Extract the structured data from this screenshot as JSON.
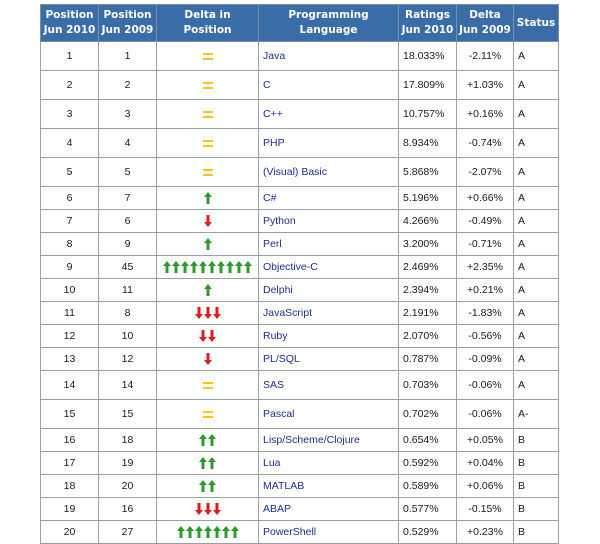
{
  "headers": {
    "pos2010": [
      "Position",
      "Jun 2010"
    ],
    "pos2009": [
      "Position",
      "Jun 2009"
    ],
    "delta_pos": "Delta in Position",
    "language": "Programming Language",
    "ratings": [
      "Ratings",
      "Jun 2010"
    ],
    "delta": [
      "Delta",
      "Jun 2009"
    ],
    "status": "Status"
  },
  "colors": {
    "header_bg": "#3a6ca8",
    "up_arrow": "#2e9a2e",
    "down_arrow": "#dd1c1c",
    "equal": "#f5c517",
    "link": "#1c2f8e"
  },
  "rows": [
    {
      "pos2010": "1",
      "pos2009": "1",
      "change": "equal",
      "count": 1,
      "language": "Java",
      "rating": "18.033%",
      "delta": "-2.11%",
      "status": "A"
    },
    {
      "pos2010": "2",
      "pos2009": "2",
      "change": "equal",
      "count": 1,
      "language": "C",
      "rating": "17.809%",
      "delta": "+1.03%",
      "status": "A"
    },
    {
      "pos2010": "3",
      "pos2009": "3",
      "change": "equal",
      "count": 1,
      "language": "C++",
      "rating": "10.757%",
      "delta": "+0.16%",
      "status": "A"
    },
    {
      "pos2010": "4",
      "pos2009": "4",
      "change": "equal",
      "count": 1,
      "language": "PHP",
      "rating": "8.934%",
      "delta": "-0.74%",
      "status": "A"
    },
    {
      "pos2010": "5",
      "pos2009": "5",
      "change": "equal",
      "count": 1,
      "language": "(Visual) Basic",
      "rating": "5.868%",
      "delta": "-2.07%",
      "status": "A"
    },
    {
      "pos2010": "6",
      "pos2009": "7",
      "change": "up",
      "count": 1,
      "language": "C#",
      "rating": "5.196%",
      "delta": "+0.66%",
      "status": "A"
    },
    {
      "pos2010": "7",
      "pos2009": "6",
      "change": "down",
      "count": 1,
      "language": "Python",
      "rating": "4.266%",
      "delta": "-0.49%",
      "status": "A"
    },
    {
      "pos2010": "8",
      "pos2009": "9",
      "change": "up",
      "count": 1,
      "language": "Perl",
      "rating": "3.200%",
      "delta": "-0.71%",
      "status": "A"
    },
    {
      "pos2010": "9",
      "pos2009": "45",
      "change": "up",
      "count": 10,
      "language": "Objective-C",
      "rating": "2.469%",
      "delta": "+2.35%",
      "status": "A"
    },
    {
      "pos2010": "10",
      "pos2009": "11",
      "change": "up",
      "count": 1,
      "language": "Delphi",
      "rating": "2.394%",
      "delta": "+0.21%",
      "status": "A"
    },
    {
      "pos2010": "11",
      "pos2009": "8",
      "change": "down",
      "count": 3,
      "language": "JavaScript",
      "rating": "2.191%",
      "delta": "-1.83%",
      "status": "A"
    },
    {
      "pos2010": "12",
      "pos2009": "10",
      "change": "down",
      "count": 2,
      "language": "Ruby",
      "rating": "2.070%",
      "delta": "-0.56%",
      "status": "A"
    },
    {
      "pos2010": "13",
      "pos2009": "12",
      "change": "down",
      "count": 1,
      "language": "PL/SQL",
      "rating": "0.787%",
      "delta": "-0.09%",
      "status": "A"
    },
    {
      "pos2010": "14",
      "pos2009": "14",
      "change": "equal",
      "count": 1,
      "language": "SAS",
      "rating": "0.703%",
      "delta": "-0.06%",
      "status": "A"
    },
    {
      "pos2010": "15",
      "pos2009": "15",
      "change": "equal",
      "count": 1,
      "language": "Pascal",
      "rating": "0.702%",
      "delta": "-0.06%",
      "status": "A-"
    },
    {
      "pos2010": "16",
      "pos2009": "18",
      "change": "up",
      "count": 2,
      "language": "Lisp/Scheme/Clojure",
      "rating": "0.654%",
      "delta": "+0.05%",
      "status": "B"
    },
    {
      "pos2010": "17",
      "pos2009": "19",
      "change": "up",
      "count": 2,
      "language": "Lua",
      "rating": "0.592%",
      "delta": "+0.04%",
      "status": "B"
    },
    {
      "pos2010": "18",
      "pos2009": "20",
      "change": "up",
      "count": 2,
      "language": "MATLAB",
      "rating": "0.589%",
      "delta": "+0.06%",
      "status": "B"
    },
    {
      "pos2010": "19",
      "pos2009": "16",
      "change": "down",
      "count": 3,
      "language": "ABAP",
      "rating": "0.577%",
      "delta": "-0.15%",
      "status": "B"
    },
    {
      "pos2010": "20",
      "pos2009": "27",
      "change": "up",
      "count": 7,
      "language": "PowerShell",
      "rating": "0.529%",
      "delta": "+0.23%",
      "status": "B"
    }
  ]
}
